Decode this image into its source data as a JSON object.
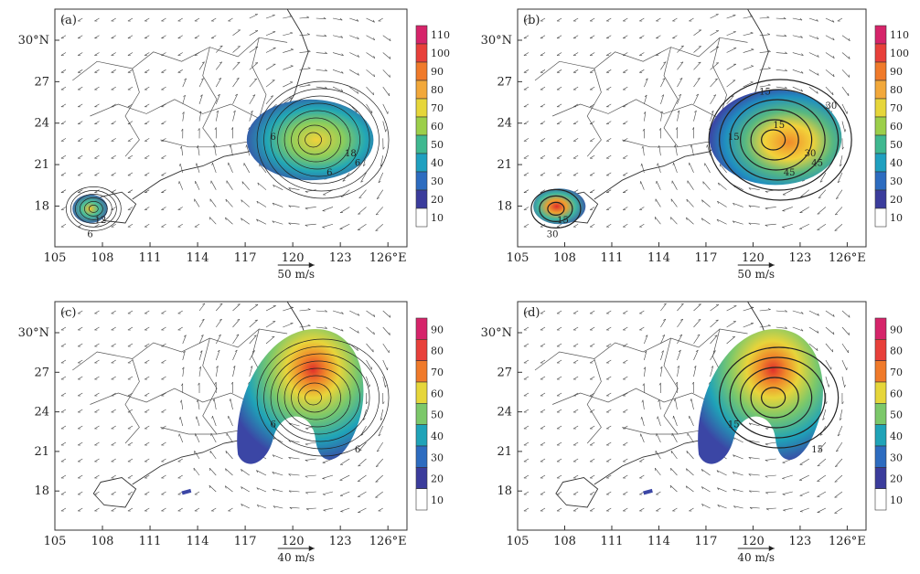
{
  "panels": [
    {
      "id": "a",
      "label": "(a)",
      "x_ticks": [
        "105",
        "108",
        "111",
        "114",
        "117",
        "120",
        "123",
        "126°E"
      ],
      "y_ticks": [
        "30°N",
        "27",
        "24",
        "21",
        "18"
      ],
      "vector_key": "50 m/s",
      "colorbar_ticks": [
        "110",
        "100",
        "90",
        "80",
        "70",
        "60",
        "50",
        "40",
        "30",
        "20",
        "10"
      ],
      "contour_labels": [
        "6",
        "6",
        "18",
        "12",
        "6",
        "6"
      ]
    },
    {
      "id": "b",
      "label": "(b)",
      "x_ticks": [
        "105",
        "108",
        "111",
        "114",
        "117",
        "120",
        "123",
        "126°E"
      ],
      "y_ticks": [
        "30°N",
        "27",
        "24",
        "21",
        "18"
      ],
      "vector_key": "50 m/s",
      "colorbar_ticks": [
        "110",
        "100",
        "90",
        "80",
        "70",
        "60",
        "50",
        "40",
        "30",
        "20",
        "10"
      ],
      "contour_labels": [
        "15",
        "45",
        "30",
        "15",
        "30",
        "45",
        "15",
        "15",
        "30"
      ]
    },
    {
      "id": "c",
      "label": "(c)",
      "x_ticks": [
        "105",
        "108",
        "111",
        "114",
        "117",
        "120",
        "123",
        "126°E"
      ],
      "y_ticks": [
        "30°N",
        "27",
        "24",
        "21",
        "18"
      ],
      "vector_key": "40 m/s",
      "colorbar_ticks": [
        "90",
        "80",
        "70",
        "60",
        "50",
        "40",
        "30",
        "20",
        "10"
      ],
      "contour_labels": [
        "6",
        "6"
      ]
    },
    {
      "id": "d",
      "label": "(d)",
      "x_ticks": [
        "105",
        "108",
        "111",
        "114",
        "117",
        "120",
        "123",
        "126°E"
      ],
      "y_ticks": [
        "30°N",
        "27",
        "24",
        "21",
        "18"
      ],
      "vector_key": "40 m/s",
      "colorbar_ticks": [
        "90",
        "80",
        "70",
        "60",
        "50",
        "40",
        "30",
        "20",
        "10"
      ],
      "contour_labels": [
        "15",
        "15"
      ]
    }
  ]
}
